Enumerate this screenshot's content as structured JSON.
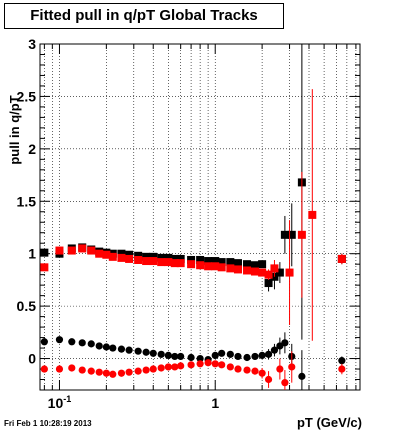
{
  "title": "Fitted pull in q/pT  Global Tracks",
  "footer": "Fri Feb  1 10:28:19 2013",
  "chart_data": {
    "type": "scatter",
    "title": "Fitted pull in q/pT  Global Tracks",
    "xlabel": "pT (GeV/c)",
    "ylabel": "pull in q/pT",
    "xscale": "log",
    "xlim": [
      0.075,
      8.5
    ],
    "ylim": [
      -0.3,
      3.0
    ],
    "grid": true,
    "x_tick_labels": [
      {
        "x": 0.1,
        "label": "10",
        "sup": "-1"
      },
      {
        "x": 1,
        "label": "1",
        "sup": ""
      }
    ],
    "y_ticks": [
      0,
      0.5,
      1,
      1.5,
      2,
      2.5,
      3
    ],
    "y_tick_labels": [
      "0",
      "0.5",
      "1",
      "1.5",
      "2",
      "2.5",
      "3"
    ],
    "series": [
      {
        "marker": "square",
        "color": "#000000",
        "points": [
          {
            "x": 0.08,
            "y": 1.01
          },
          {
            "x": 0.1,
            "y": 1.0
          },
          {
            "x": 0.12,
            "y": 1.05
          },
          {
            "x": 0.14,
            "y": 1.06
          },
          {
            "x": 0.16,
            "y": 1.04
          },
          {
            "x": 0.18,
            "y": 1.02
          },
          {
            "x": 0.2,
            "y": 1.01
          },
          {
            "x": 0.22,
            "y": 1.0
          },
          {
            "x": 0.25,
            "y": 1.0
          },
          {
            "x": 0.28,
            "y": 0.99
          },
          {
            "x": 0.32,
            "y": 0.98
          },
          {
            "x": 0.36,
            "y": 0.97
          },
          {
            "x": 0.4,
            "y": 0.97
          },
          {
            "x": 0.45,
            "y": 0.96
          },
          {
            "x": 0.5,
            "y": 0.96
          },
          {
            "x": 0.55,
            "y": 0.95
          },
          {
            "x": 0.6,
            "y": 0.95
          },
          {
            "x": 0.7,
            "y": 0.94
          },
          {
            "x": 0.8,
            "y": 0.94
          },
          {
            "x": 0.9,
            "y": 0.93
          },
          {
            "x": 1.0,
            "y": 0.93
          },
          {
            "x": 1.1,
            "y": 0.92
          },
          {
            "x": 1.25,
            "y": 0.92
          },
          {
            "x": 1.4,
            "y": 0.91
          },
          {
            "x": 1.6,
            "y": 0.9
          },
          {
            "x": 1.8,
            "y": 0.89
          },
          {
            "x": 2.0,
            "y": 0.9
          },
          {
            "x": 2.2,
            "y": 0.72,
            "err": 0.08
          },
          {
            "x": 2.4,
            "y": 0.78,
            "err": 0.12
          },
          {
            "x": 2.6,
            "y": 0.82,
            "err": 0.1
          },
          {
            "x": 2.8,
            "y": 1.18,
            "err": 0.18
          },
          {
            "x": 3.1,
            "y": 1.18,
            "err": 0.3
          },
          {
            "x": 3.6,
            "y": 1.68,
            "err": 1.5
          },
          {
            "x": 6.5,
            "y": 0.95,
            "err": 0.05
          }
        ]
      },
      {
        "marker": "square",
        "color": "#ff0000",
        "points": [
          {
            "x": 0.08,
            "y": 0.87
          },
          {
            "x": 0.1,
            "y": 1.03
          },
          {
            "x": 0.12,
            "y": 1.03
          },
          {
            "x": 0.14,
            "y": 1.05
          },
          {
            "x": 0.16,
            "y": 1.03
          },
          {
            "x": 0.18,
            "y": 1.0
          },
          {
            "x": 0.2,
            "y": 0.99
          },
          {
            "x": 0.22,
            "y": 0.97
          },
          {
            "x": 0.25,
            "y": 0.96
          },
          {
            "x": 0.28,
            "y": 0.95
          },
          {
            "x": 0.32,
            "y": 0.94
          },
          {
            "x": 0.36,
            "y": 0.93
          },
          {
            "x": 0.4,
            "y": 0.93
          },
          {
            "x": 0.45,
            "y": 0.92
          },
          {
            "x": 0.5,
            "y": 0.92
          },
          {
            "x": 0.55,
            "y": 0.91
          },
          {
            "x": 0.6,
            "y": 0.91
          },
          {
            "x": 0.7,
            "y": 0.9
          },
          {
            "x": 0.8,
            "y": 0.89
          },
          {
            "x": 0.9,
            "y": 0.88
          },
          {
            "x": 1.0,
            "y": 0.88
          },
          {
            "x": 1.1,
            "y": 0.87
          },
          {
            "x": 1.25,
            "y": 0.86
          },
          {
            "x": 1.4,
            "y": 0.85
          },
          {
            "x": 1.6,
            "y": 0.84
          },
          {
            "x": 1.8,
            "y": 0.83
          },
          {
            "x": 2.0,
            "y": 0.82
          },
          {
            "x": 2.2,
            "y": 0.8,
            "err": 0.05
          },
          {
            "x": 2.4,
            "y": 0.86,
            "err": 0.08
          },
          {
            "x": 3.0,
            "y": 0.82,
            "err": 0.5
          },
          {
            "x": 3.6,
            "y": 1.18,
            "err": 0.6
          },
          {
            "x": 4.2,
            "y": 1.37,
            "err": 1.2
          },
          {
            "x": 6.5,
            "y": 0.95,
            "err": 0.05
          }
        ]
      },
      {
        "marker": "circle",
        "color": "#000000",
        "points": [
          {
            "x": 0.08,
            "y": 0.16
          },
          {
            "x": 0.1,
            "y": 0.18
          },
          {
            "x": 0.12,
            "y": 0.16
          },
          {
            "x": 0.14,
            "y": 0.15
          },
          {
            "x": 0.16,
            "y": 0.14
          },
          {
            "x": 0.18,
            "y": 0.12
          },
          {
            "x": 0.2,
            "y": 0.11
          },
          {
            "x": 0.22,
            "y": 0.1
          },
          {
            "x": 0.25,
            "y": 0.09
          },
          {
            "x": 0.28,
            "y": 0.08
          },
          {
            "x": 0.32,
            "y": 0.07
          },
          {
            "x": 0.36,
            "y": 0.06
          },
          {
            "x": 0.4,
            "y": 0.05
          },
          {
            "x": 0.45,
            "y": 0.04
          },
          {
            "x": 0.5,
            "y": 0.03
          },
          {
            "x": 0.55,
            "y": 0.02
          },
          {
            "x": 0.6,
            "y": 0.02
          },
          {
            "x": 0.7,
            "y": 0.01
          },
          {
            "x": 0.8,
            "y": 0.0
          },
          {
            "x": 0.9,
            "y": -0.01
          },
          {
            "x": 1.0,
            "y": 0.03
          },
          {
            "x": 1.1,
            "y": 0.05
          },
          {
            "x": 1.25,
            "y": 0.04
          },
          {
            "x": 1.4,
            "y": 0.02
          },
          {
            "x": 1.6,
            "y": 0.01
          },
          {
            "x": 1.8,
            "y": 0.02
          },
          {
            "x": 2.0,
            "y": 0.03,
            "err": 0.03
          },
          {
            "x": 2.2,
            "y": 0.04,
            "err": 0.05
          },
          {
            "x": 2.4,
            "y": 0.08,
            "err": 0.06
          },
          {
            "x": 2.6,
            "y": 0.12,
            "err": 0.08
          },
          {
            "x": 2.8,
            "y": 0.15,
            "err": 0.1
          },
          {
            "x": 3.1,
            "y": 0.02,
            "err": 0.12
          },
          {
            "x": 3.6,
            "y": -0.17,
            "err": 0.25
          },
          {
            "x": 6.5,
            "y": -0.02,
            "err": 0.04
          }
        ]
      },
      {
        "marker": "circle",
        "color": "#ff0000",
        "points": [
          {
            "x": 0.08,
            "y": -0.1
          },
          {
            "x": 0.1,
            "y": -0.1
          },
          {
            "x": 0.12,
            "y": -0.09
          },
          {
            "x": 0.14,
            "y": -0.11
          },
          {
            "x": 0.16,
            "y": -0.12
          },
          {
            "x": 0.18,
            "y": -0.13
          },
          {
            "x": 0.2,
            "y": -0.14
          },
          {
            "x": 0.22,
            "y": -0.15
          },
          {
            "x": 0.25,
            "y": -0.14
          },
          {
            "x": 0.28,
            "y": -0.13
          },
          {
            "x": 0.32,
            "y": -0.12
          },
          {
            "x": 0.36,
            "y": -0.11
          },
          {
            "x": 0.4,
            "y": -0.1
          },
          {
            "x": 0.45,
            "y": -0.09
          },
          {
            "x": 0.5,
            "y": -0.08
          },
          {
            "x": 0.55,
            "y": -0.08
          },
          {
            "x": 0.6,
            "y": -0.07
          },
          {
            "x": 0.7,
            "y": -0.06
          },
          {
            "x": 0.8,
            "y": -0.05
          },
          {
            "x": 0.9,
            "y": -0.04
          },
          {
            "x": 1.0,
            "y": -0.05
          },
          {
            "x": 1.1,
            "y": -0.06
          },
          {
            "x": 1.25,
            "y": -0.08
          },
          {
            "x": 1.4,
            "y": -0.1
          },
          {
            "x": 1.6,
            "y": -0.11
          },
          {
            "x": 1.8,
            "y": -0.12
          },
          {
            "x": 2.0,
            "y": -0.14,
            "err": 0.05
          },
          {
            "x": 2.2,
            "y": -0.2,
            "err": 0.08
          },
          {
            "x": 2.6,
            "y": -0.1,
            "err": 0.1
          },
          {
            "x": 2.8,
            "y": -0.23,
            "err": 0.12
          },
          {
            "x": 3.1,
            "y": -0.08,
            "err": 0.15
          },
          {
            "x": 6.5,
            "y": -0.1,
            "err": 0.05
          }
        ]
      }
    ]
  }
}
